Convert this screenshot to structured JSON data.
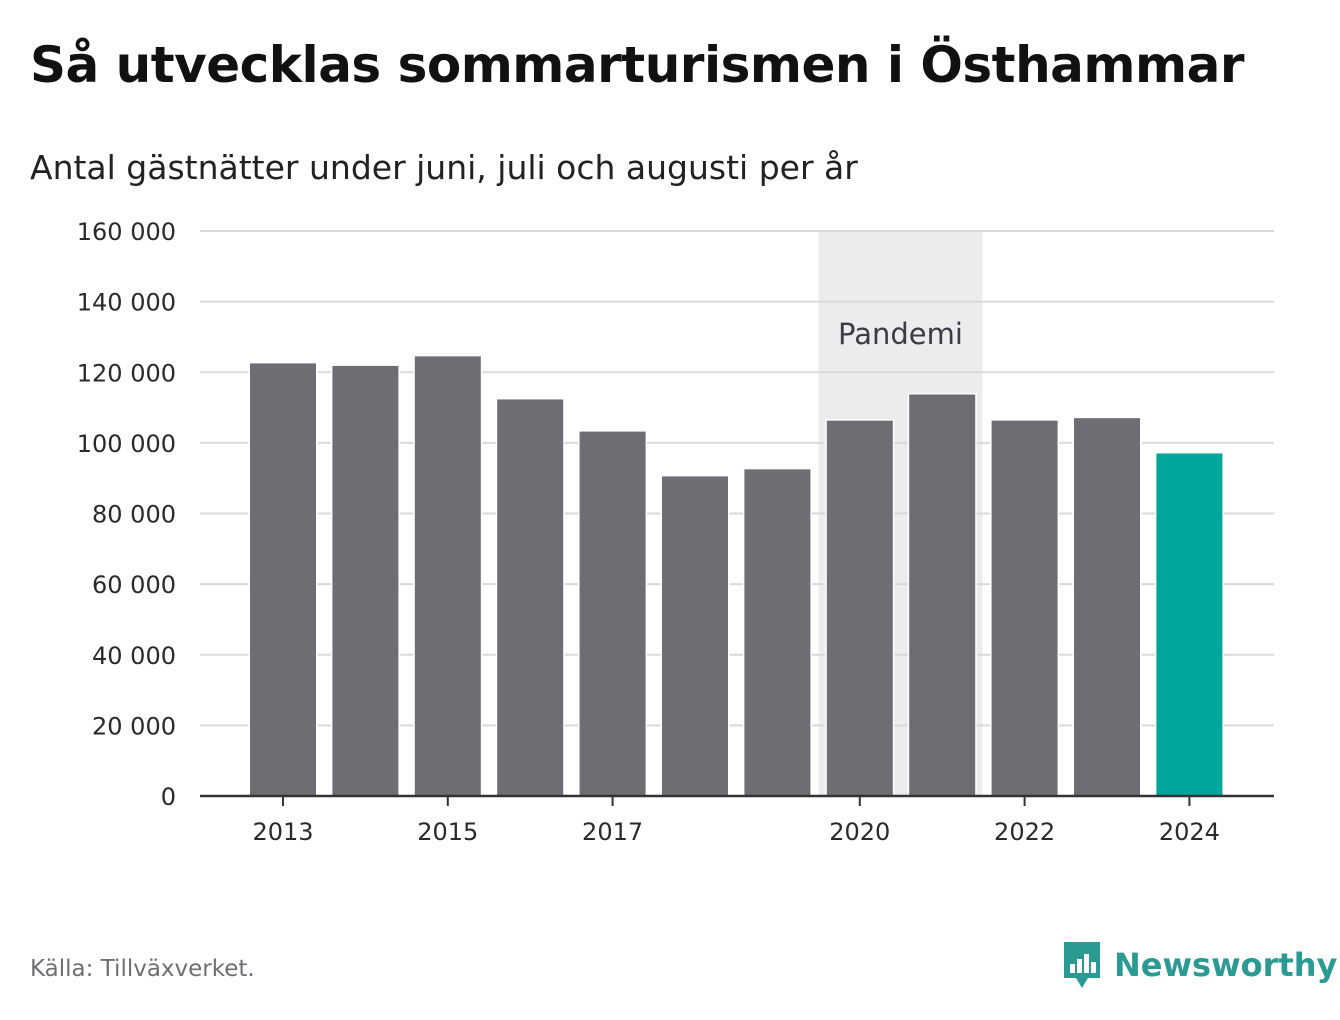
{
  "header": {
    "title": "Så utvecklas sommarturismen i Östhammar",
    "subtitle": "Antal gästnätter under juni, juli och augusti per år"
  },
  "footer": {
    "source": "Källa: Tillväxverket.",
    "brand": "Newsworthy"
  },
  "colors": {
    "bar": "#6e6d73",
    "highlight": "#00a59c",
    "band": "#ececec",
    "grid": "#d9d9d9",
    "axis": "#333333",
    "brand": "#2a9a93"
  },
  "icons": {
    "logo": "newsworthy-bar-chart-logo-icon"
  },
  "chart_data": {
    "type": "bar",
    "title": "Så utvecklas sommarturismen i Östhammar",
    "subtitle": "Antal gästnätter under juni, juli och augusti per år",
    "xlabel": "",
    "ylabel": "",
    "categories": [
      "2013",
      "2014",
      "2015",
      "2016",
      "2017",
      "2018",
      "2019",
      "2020",
      "2021",
      "2022",
      "2023",
      "2024"
    ],
    "values": [
      122500,
      121800,
      124500,
      112300,
      103200,
      90500,
      92500,
      106300,
      113700,
      106300,
      107000,
      97000
    ],
    "highlight_category": "2024",
    "ylim": [
      0,
      160000
    ],
    "yticks": [
      0,
      20000,
      40000,
      60000,
      80000,
      100000,
      120000,
      140000,
      160000
    ],
    "ytick_labels": [
      "0",
      "20 000",
      "40 000",
      "60 000",
      "80 000",
      "100 000",
      "120 000",
      "140 000",
      "160 000"
    ],
    "xtick_labels": [
      "2013",
      "2015",
      "2017",
      "2020",
      "2022",
      "2024"
    ],
    "grid": true,
    "annotation": {
      "label": "Pandemi",
      "from": "2020",
      "to": "2021"
    }
  }
}
